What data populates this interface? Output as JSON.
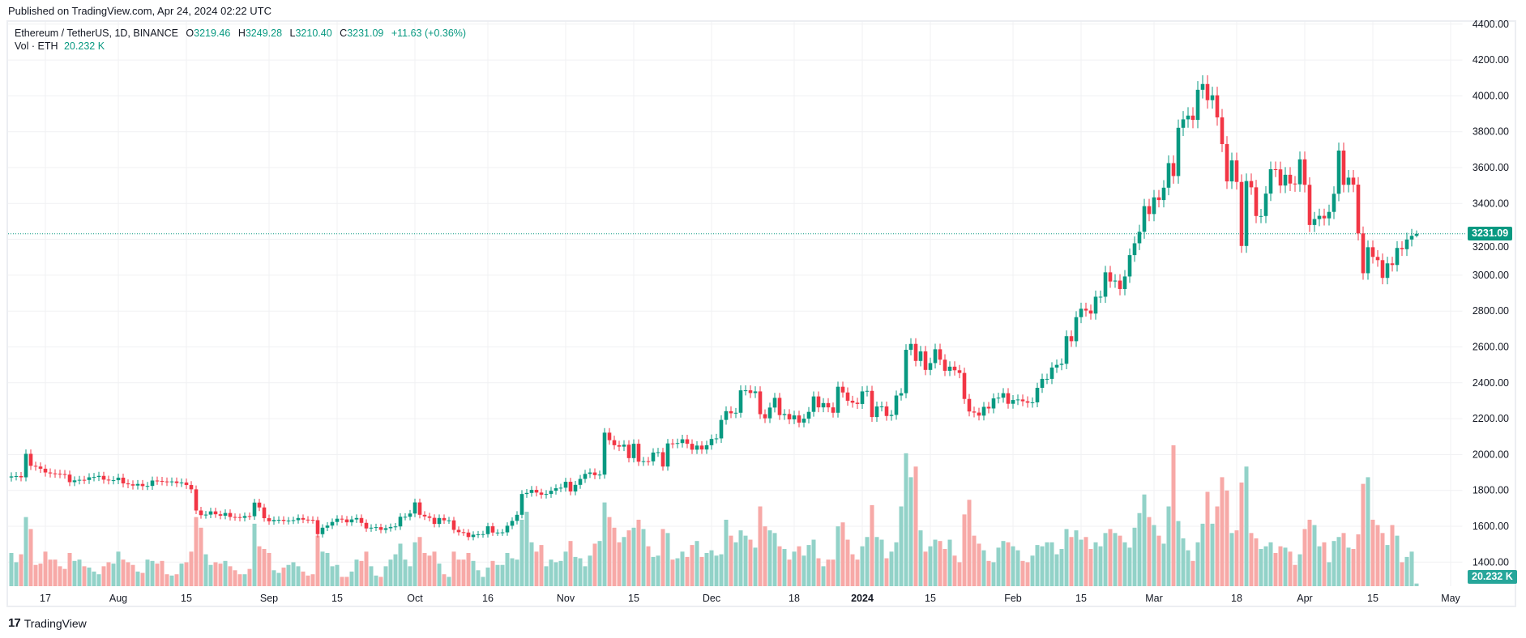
{
  "published": "Published on TradingView.com, Apr 24, 2024 02:22 UTC",
  "legend": {
    "symbol": "Ethereum / TetherUS, 1D, BINANCE",
    "o_label": "O",
    "o": "3219.46",
    "h_label": "H",
    "h": "3249.28",
    "l_label": "L",
    "l": "3210.40",
    "c_label": "C",
    "c": "3231.09",
    "change": "+11.63 (+0.36%)",
    "vol_label": "Vol · ETH",
    "vol": "20.232 K"
  },
  "price_badge": "3231.09",
  "volume_badge": "20.232 K",
  "footer": {
    "logo": "17",
    "brand": "TradingView"
  },
  "colors": {
    "up": "#089981",
    "down": "#f23645",
    "vol_up": "#92d2c8",
    "vol_down": "#f7a9a7",
    "grid": "#f0f1f3"
  },
  "chart_data": {
    "type": "candlestick",
    "title": "Ethereum / TetherUS, 1D, BINANCE",
    "start_date": "2023-07-10",
    "interval": "1D",
    "first_open": 1872,
    "last_bar": {
      "o": 3219.46,
      "h": 3249.28,
      "l": 3210.4,
      "c": 3231.09
    },
    "last_price": 3231.09,
    "ylim": [
      1400,
      4400
    ],
    "y_ticks": [
      "1400.00",
      "1600.00",
      "1800.00",
      "2000.00",
      "2200.00",
      "2400.00",
      "2600.00",
      "2800.00",
      "3000.00",
      "3200.00",
      "3400.00",
      "3600.00",
      "3800.00",
      "4000.00",
      "4200.00",
      "4400.00"
    ],
    "x_ticks": [
      {
        "label": "17",
        "date": "2023-07-17"
      },
      {
        "label": "Aug",
        "date": "2023-08-01"
      },
      {
        "label": "15",
        "date": "2023-08-15"
      },
      {
        "label": "Sep",
        "date": "2023-09-01"
      },
      {
        "label": "15",
        "date": "2023-09-15"
      },
      {
        "label": "Oct",
        "date": "2023-10-01"
      },
      {
        "label": "16",
        "date": "2023-10-16"
      },
      {
        "label": "Nov",
        "date": "2023-11-01"
      },
      {
        "label": "15",
        "date": "2023-11-15"
      },
      {
        "label": "Dec",
        "date": "2023-12-01"
      },
      {
        "label": "18",
        "date": "2023-12-18"
      },
      {
        "label": "2024",
        "date": "2024-01-01",
        "bold": true
      },
      {
        "label": "15",
        "date": "2024-01-15"
      },
      {
        "label": "Feb",
        "date": "2024-02-01"
      },
      {
        "label": "15",
        "date": "2024-02-15"
      },
      {
        "label": "Mar",
        "date": "2024-03-01"
      },
      {
        "label": "18",
        "date": "2024-03-18"
      },
      {
        "label": "Apr",
        "date": "2024-04-01"
      },
      {
        "label": "15",
        "date": "2024-04-15"
      },
      {
        "label": "May",
        "date": "2024-05-01"
      }
    ],
    "closes": [
      1878,
      1880,
      1873,
      2004,
      1937,
      1933,
      1921,
      1900,
      1895,
      1893,
      1891,
      1888,
      1846,
      1856,
      1859,
      1858,
      1873,
      1875,
      1881,
      1860,
      1856,
      1857,
      1871,
      1839,
      1834,
      1827,
      1836,
      1824,
      1825,
      1855,
      1853,
      1850,
      1847,
      1850,
      1841,
      1844,
      1830,
      1806,
      1688,
      1662,
      1665,
      1683,
      1667,
      1659,
      1674,
      1652,
      1651,
      1647,
      1657,
      1656,
      1732,
      1705,
      1645,
      1628,
      1635,
      1636,
      1630,
      1632,
      1634,
      1646,
      1637,
      1636,
      1634,
      1556,
      1592,
      1604,
      1624,
      1642,
      1638,
      1622,
      1638,
      1646,
      1619,
      1588,
      1592,
      1595,
      1580,
      1589,
      1596,
      1599,
      1653,
      1653,
      1671,
      1733,
      1664,
      1655,
      1647,
      1613,
      1646,
      1633,
      1633,
      1580,
      1567,
      1565,
      1540,
      1553,
      1555,
      1556,
      1600,
      1565,
      1565,
      1566,
      1603,
      1630,
      1664,
      1780,
      1786,
      1803,
      1788,
      1776,
      1780,
      1798,
      1812,
      1815,
      1848,
      1794,
      1831,
      1864,
      1892,
      1900,
      1885,
      1888,
      2122,
      2080,
      2052,
      2044,
      2055,
      1980,
      2060,
      1960,
      1963,
      1962,
      2011,
      2013,
      1933,
      2062,
      2060,
      2064,
      2085,
      2060,
      2027,
      2050,
      2028,
      2052,
      2087,
      2090,
      2193,
      2242,
      2230,
      2233,
      2358,
      2358,
      2343,
      2352,
      2225,
      2202,
      2262,
      2316,
      2220,
      2226,
      2196,
      2218,
      2178,
      2200,
      2238,
      2324,
      2263,
      2287,
      2263,
      2233,
      2378,
      2346,
      2300,
      2289,
      2282,
      2352,
      2355,
      2209,
      2268,
      2268,
      2215,
      2221,
      2329,
      2342,
      2584,
      2617,
      2522,
      2575,
      2472,
      2510,
      2587,
      2529,
      2467,
      2490,
      2470,
      2455,
      2310,
      2240,
      2234,
      2217,
      2266,
      2257,
      2313,
      2317,
      2342,
      2283,
      2304,
      2307,
      2297,
      2289,
      2291,
      2372,
      2422,
      2422,
      2485,
      2500,
      2506,
      2660,
      2632,
      2766,
      2813,
      2803,
      2786,
      2880,
      2880,
      3016,
      2965,
      2970,
      2923,
      2993,
      3112,
      3178,
      3242,
      3385,
      3341,
      3434,
      3419,
      3488,
      3625,
      3553,
      3822,
      3869,
      3890,
      3866,
      4034,
      4066,
      3976,
      4003,
      3880,
      3731,
      3523,
      3640,
      3520,
      3163,
      3525,
      3490,
      3330,
      3330,
      3455,
      3591,
      3590,
      3500,
      3560,
      3511,
      3507,
      3646,
      3504,
      3280,
      3313,
      3331,
      3317,
      3353,
      3454,
      3695,
      3504,
      3544,
      3505,
      3233,
      3011,
      3156,
      3102,
      3084,
      2985,
      3066,
      3057,
      3152,
      3145,
      3199,
      3219.46,
      3231.09
    ],
    "volumes_k": [
      250,
      180,
      240,
      520,
      430,
      160,
      170,
      260,
      200,
      200,
      150,
      130,
      250,
      190,
      200,
      150,
      140,
      110,
      90,
      150,
      180,
      170,
      260,
      200,
      180,
      160,
      110,
      100,
      200,
      190,
      170,
      190,
      90,
      80,
      90,
      170,
      180,
      260,
      520,
      440,
      240,
      160,
      180,
      170,
      190,
      150,
      120,
      90,
      90,
      130,
      470,
      300,
      280,
      250,
      120,
      100,
      140,
      160,
      180,
      150,
      110,
      80,
      90,
      380,
      260,
      250,
      150,
      160,
      70,
      70,
      110,
      200,
      190,
      260,
      150,
      80,
      70,
      150,
      200,
      240,
      320,
      200,
      150,
      330,
      370,
      250,
      230,
      260,
      170,
      90,
      70,
      260,
      200,
      200,
      250,
      190,
      120,
      70,
      140,
      190,
      160,
      160,
      250,
      210,
      200,
      500,
      560,
      330,
      260,
      310,
      150,
      200,
      180,
      190,
      260,
      340,
      220,
      210,
      150,
      230,
      320,
      340,
      630,
      520,
      440,
      330,
      370,
      420,
      440,
      500,
      430,
      300,
      220,
      230,
      430,
      400,
      200,
      210,
      260,
      220,
      310,
      340,
      220,
      250,
      270,
      230,
      240,
      500,
      380,
      330,
      420,
      380,
      350,
      290,
      600,
      450,
      420,
      400,
      300,
      280,
      200,
      260,
      300,
      230,
      310,
      350,
      210,
      150,
      200,
      200,
      450,
      480,
      350,
      240,
      200,
      300,
      370,
      610,
      370,
      350,
      210,
      260,
      330,
      600,
      1000,
      820,
      900,
      420,
      260,
      300,
      350,
      340,
      280,
      350,
      230,
      180,
      540,
      650,
      380,
      320,
      270,
      190,
      180,
      290,
      340,
      330,
      300,
      270,
      190,
      180,
      230,
      310,
      300,
      330,
      330,
      240,
      280,
      430,
      370,
      420,
      350,
      370,
      280,
      330,
      300,
      400,
      430,
      400,
      380,
      330,
      290,
      440,
      550,
      690,
      520,
      460,
      380,
      320,
      600,
      1060,
      490,
      360,
      270,
      190,
      330,
      470,
      710,
      470,
      600,
      820,
      720,
      400,
      420,
      780,
      900,
      400,
      360,
      280,
      300,
      330,
      250,
      300,
      290,
      260,
      160,
      240,
      430,
      500,
      460,
      300,
      330,
      180,
      340,
      370,
      400,
      290,
      280,
      390,
      770,
      820,
      500,
      460,
      400,
      310,
      460,
      380,
      180,
      220,
      260,
      20.232
    ]
  }
}
